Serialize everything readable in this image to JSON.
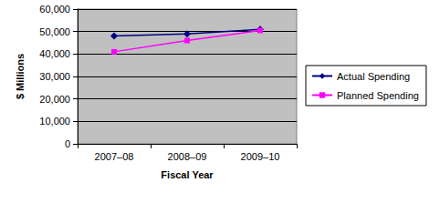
{
  "chart_data": {
    "type": "line",
    "xlabel": "Fiscal Year",
    "ylabel": "$ Millions",
    "categories": [
      "2007–08",
      "2008–09",
      "2009–10"
    ],
    "series": [
      {
        "name": "Actual Spending",
        "color": "#000080",
        "marker": "diamond",
        "line_style": "solid",
        "values": [
          48000,
          49000,
          51000
        ]
      },
      {
        "name": "Planned Spending",
        "color": "#FF00FF",
        "marker": "square",
        "line_style": "solid",
        "values": [
          41000,
          46000,
          50500
        ]
      }
    ],
    "ylim": [
      0,
      60000
    ],
    "yticks": [
      0,
      {
        "value": 10000,
        "label": "10,000"
      },
      {
        "value": 20000,
        "label": "20,000"
      },
      {
        "value": 30000,
        "label": "30,000"
      },
      {
        "value": 40000,
        "label": "40,000"
      },
      {
        "value": 50000,
        "label": "50,000"
      },
      {
        "value": 60000,
        "label": "60,000"
      }
    ],
    "grid": true,
    "legend": "right"
  }
}
